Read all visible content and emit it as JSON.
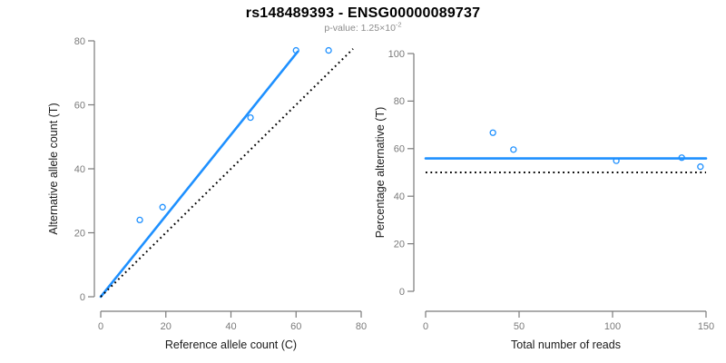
{
  "figure": {
    "title": "rs148489393 - ENSG00000089737",
    "subtitle_prefix": "p-value: 1.25×10",
    "subtitle_exponent": "-2"
  },
  "colors": {
    "accent_blue": "#1E90FF",
    "reference_black": "#000000",
    "axis_gray": "#7a7a7a",
    "tick_label_gray": "#7a7a7a",
    "axis_title_color": "#1a1a1a"
  },
  "chart_data": [
    {
      "type": "scatter",
      "panel": "left",
      "xlabel": "Reference allele count (C)",
      "ylabel": "Alternative allele count (T)",
      "xlim": [
        0,
        80
      ],
      "ylim": [
        0,
        80
      ],
      "xticks": [
        0,
        20,
        40,
        60,
        80
      ],
      "yticks": [
        0,
        20,
        40,
        60,
        80
      ],
      "points": [
        [
          12,
          24
        ],
        [
          19,
          28
        ],
        [
          46,
          56
        ],
        [
          60,
          77
        ],
        [
          70,
          77
        ]
      ],
      "fit_line": {
        "style": "solid",
        "x1": 0,
        "y1": 0,
        "x2": 60.5,
        "y2": 76.6
      },
      "reference_line": {
        "style": "dotted",
        "x1": 0,
        "y1": 0,
        "x2": 77.5,
        "y2": 77.5
      },
      "grid": false
    },
    {
      "type": "scatter",
      "panel": "right",
      "xlabel": "Total number of reads",
      "ylabel": "Percentage alternative (T)",
      "xlim": [
        0,
        150
      ],
      "ylim": [
        0,
        100
      ],
      "xticks": [
        0,
        50,
        100,
        150
      ],
      "yticks": [
        0,
        20,
        40,
        60,
        80,
        100
      ],
      "points": [
        [
          36,
          66.7
        ],
        [
          47,
          59.6
        ],
        [
          102,
          54.9
        ],
        [
          137,
          56.2
        ],
        [
          147,
          52.4
        ]
      ],
      "fit_line": {
        "style": "solid",
        "y": 55.9
      },
      "reference_line": {
        "style": "dotted",
        "y": 50
      },
      "grid": false
    }
  ]
}
